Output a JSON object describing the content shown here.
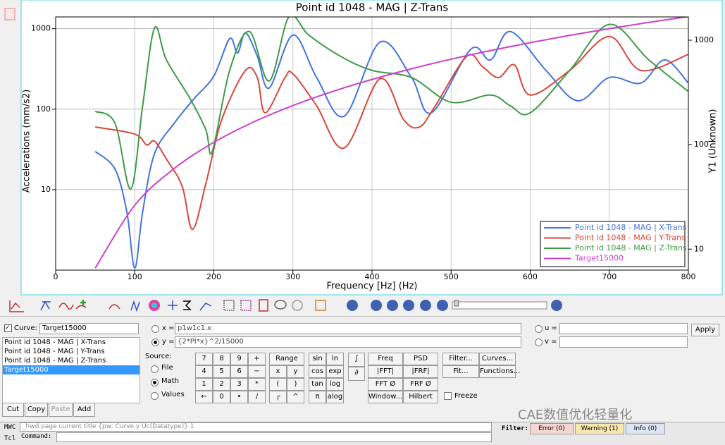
{
  "chart_data": {
    "type": "line",
    "title": "Point id 1048 - MAG | Z-Trans",
    "x_label": "Frequency [Hz] (Hz)",
    "y_label": "Accelerations (mm/s2)",
    "y2_label": "Y1 (Unknown)",
    "xlim": [
      0,
      800
    ],
    "xticks": [
      0,
      100,
      200,
      300,
      400,
      500,
      600,
      700,
      800
    ],
    "ylim": [
      1,
      1400
    ],
    "yticks": [
      10,
      100,
      1000
    ],
    "y_log": true,
    "y2lim": [
      6.3,
      1670
    ],
    "y2ticks": [
      10,
      100,
      1000
    ],
    "y2_log": true,
    "grid": true,
    "legend": "lower-right",
    "series": [
      {
        "name": "Point id 1048 - MAG | X-Trans",
        "color": "#4472e0",
        "x": [
          50,
          75,
          90,
          100,
          110,
          125,
          150,
          175,
          200,
          220,
          230,
          240,
          255,
          270,
          300,
          330,
          365,
          410,
          450,
          475,
          525,
          550,
          575,
          620,
          660,
          700,
          740,
          770,
          800
        ],
        "values": [
          29.8,
          18,
          5.3,
          1.06,
          5.3,
          28,
          67,
          135,
          258,
          753,
          500,
          886,
          455,
          183,
          833,
          247,
          82,
          680,
          247,
          90,
          556,
          410,
          922,
          303,
          127,
          247,
          211,
          410,
          211
        ]
      },
      {
        "name": "Point id 1048 - MAG | Y-Trans",
        "color": "#d9463a",
        "x": [
          50,
          100,
          115,
          125,
          140,
          160,
          173,
          190,
          210,
          240,
          255,
          265,
          290,
          300,
          330,
          365,
          410,
          440,
          460,
          480,
          520,
          540,
          560,
          580,
          600,
          650,
          700,
          740,
          800
        ],
        "values": [
          60,
          49,
          36,
          40,
          24,
          11,
          3.2,
          12,
          74,
          303,
          247,
          90,
          247,
          275,
          110,
          33,
          238,
          74,
          60,
          110,
          455,
          335,
          247,
          355,
          150,
          303,
          800,
          303,
          480
        ]
      },
      {
        "name": "Point id 1048 - MAG | Z-Trans",
        "color": "#3f9a45",
        "x": [
          50,
          75,
          95,
          110,
          125,
          140,
          170,
          190,
          198,
          220,
          245,
          270,
          295,
          320,
          360,
          400,
          450,
          500,
          550,
          575,
          600,
          650,
          700,
          750,
          800
        ],
        "values": [
          94,
          67,
          10.2,
          110,
          1020,
          410,
          135,
          55,
          29.8,
          303,
          922,
          224,
          1400,
          833,
          455,
          303,
          247,
          122,
          150,
          110,
          90,
          303,
          1130,
          410,
          166
        ]
      },
      {
        "name": "Target15000",
        "color": "#cc3fcc",
        "axis": "y2",
        "x": [
          50,
          100,
          150,
          200,
          250,
          300,
          350,
          400,
          450,
          500,
          550,
          600,
          650,
          700,
          750,
          800
        ],
        "values": [
          6.58,
          26.3,
          59.2,
          105.3,
          164.5,
          236.9,
          322.4,
          421.1,
          533.0,
          658.0,
          796.2,
          947.5,
          1112.0,
          1289.6,
          1480.4,
          1684.4
        ]
      }
    ]
  },
  "curve_panel": {
    "curve_label": "Curve:",
    "curve_name": "Target15000",
    "list": [
      "Point id 1048 - MAG | X-Trans",
      "Point id 1048 - MAG | Y-Trans",
      "Point id 1048 - MAG | Z-Trans",
      "Target15000"
    ],
    "buttons": [
      "Cut",
      "Copy",
      "Paste",
      "Add"
    ]
  },
  "source": {
    "label": "Source:",
    "options": [
      "File",
      "Math",
      "Values"
    ]
  },
  "expression": {
    "x_label": "x =",
    "x": "p1w1c1.x",
    "y_label": "y =",
    "y": "{2*PI*x}^2/15000",
    "u_label": "u =",
    "v_label": "v =",
    "apply": "Apply"
  },
  "calculator": {
    "keypad": [
      "7",
      "8",
      "9",
      "+",
      "4",
      "5",
      "6",
      "−",
      "1",
      "2",
      "3",
      "*",
      "←",
      "0",
      "•",
      "/"
    ],
    "functions": [
      "Range",
      "x",
      "y",
      "(",
      ")",
      "┌",
      "^"
    ],
    "math": [
      "sin",
      "ln",
      "cos",
      "exp",
      "tan",
      "log",
      "π",
      "alog"
    ],
    "transforms": [
      "Freq",
      "PSD",
      "|FFT|",
      "|FRF|",
      "FFT Ø",
      "FRF Ø",
      "Window...",
      "Hilbert"
    ],
    "tools": [
      "Filter...",
      "Curves...",
      "Fit...",
      "Functions..."
    ],
    "freeze": "Freeze"
  },
  "console": {
    "mwc": "MWC",
    "tcl": "Tcl",
    "command": "Command:",
    "history": "_hwd page current title {pw: Curve y Uc(Datatype)} 1",
    "filter": "Filter:",
    "error": "Error (0)",
    "warning": "Warning (1)",
    "info": "Info (0)"
  },
  "watermark": "CAE数值优化轻量化"
}
